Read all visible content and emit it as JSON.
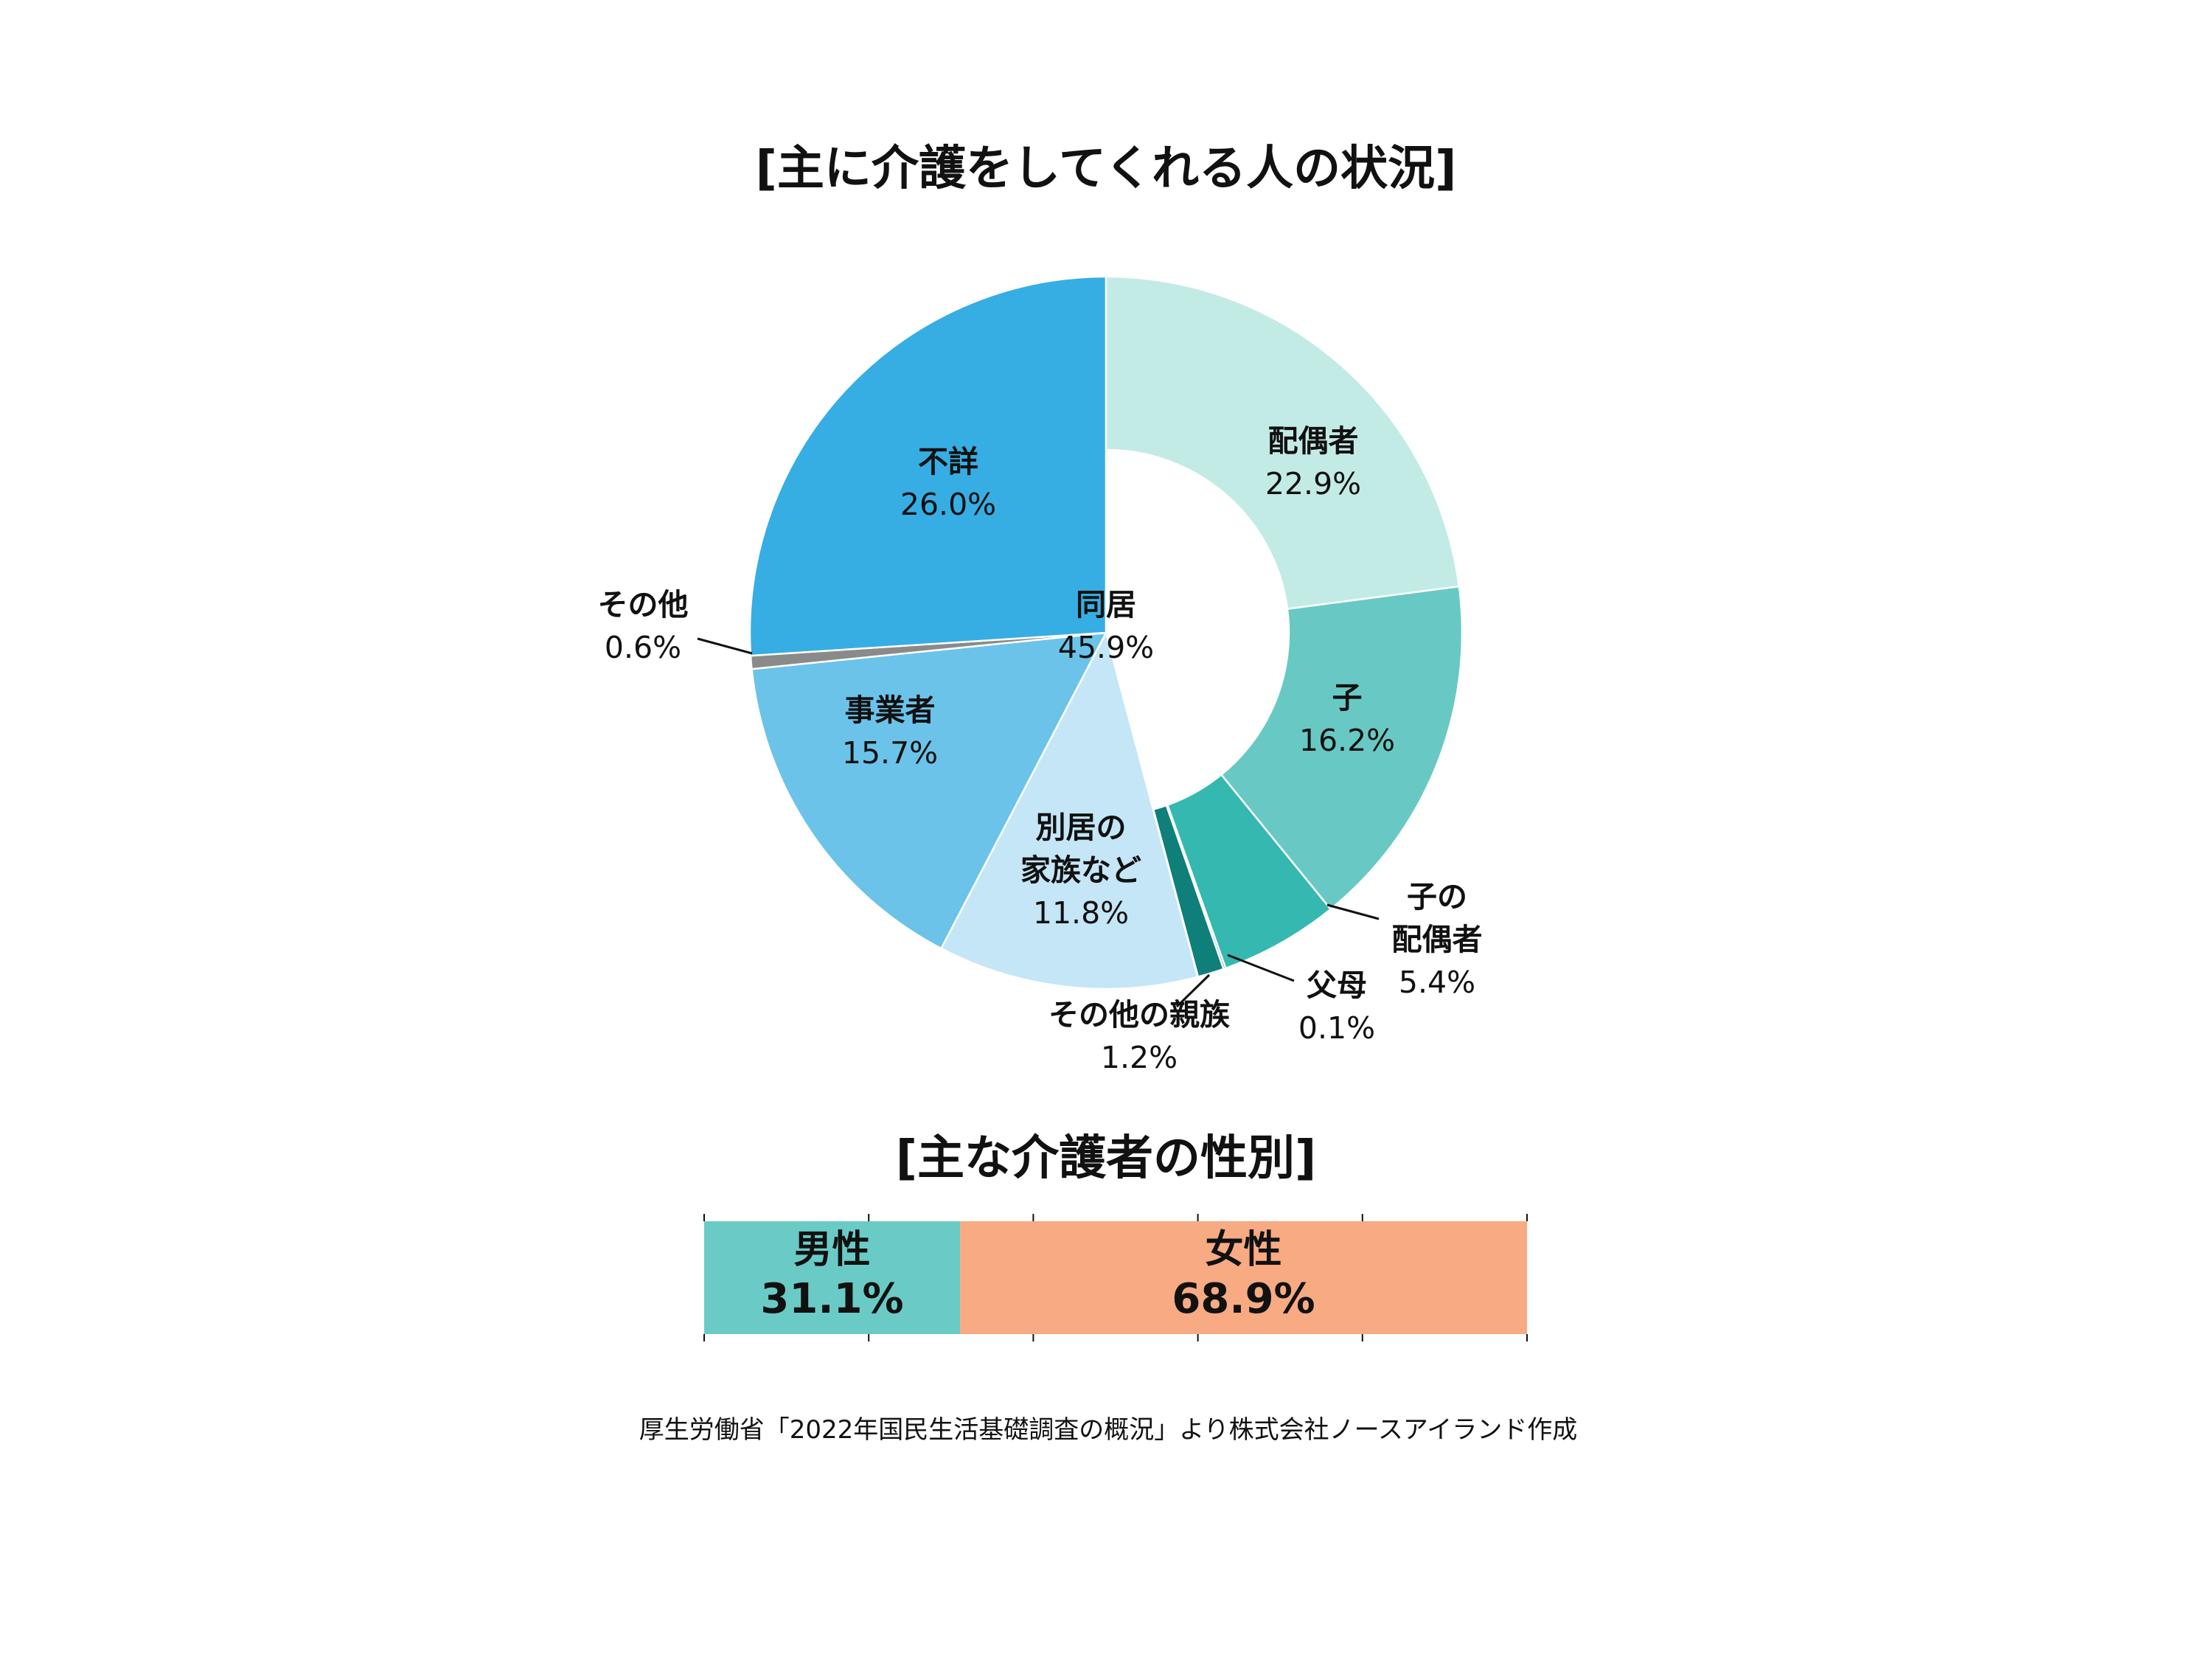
{
  "pie_title": "[主に介護をしてくれる人の状況]",
  "bar_title": "[主な介護者の性別]",
  "source": "厚生労働省「2022年国民生活基礎調査の概況」より株式会社ノースアイランド作成",
  "inner": {
    "label": "同居",
    "value": "45.9%"
  },
  "slice_labels": [
    {
      "lines": [
        "配偶者"
      ],
      "value": "22.9%"
    },
    {
      "lines": [
        "子"
      ],
      "value": "16.2%"
    },
    {
      "lines": [
        "子の",
        "配偶者"
      ],
      "value": "5.4%"
    },
    {
      "lines": [
        "父母"
      ],
      "value": "0.1%"
    },
    {
      "lines": [
        "その他の親族"
      ],
      "value": "1.2%"
    },
    {
      "lines": [
        "別居の",
        "家族など"
      ],
      "value": "11.8%"
    },
    {
      "lines": [
        "事業者"
      ],
      "value": "15.7%"
    },
    {
      "lines": [
        "その他"
      ],
      "value": "0.6%"
    },
    {
      "lines": [
        "不詳"
      ],
      "value": "26.0%"
    }
  ],
  "gender_labels": [
    {
      "name": "男性",
      "value": "31.1%"
    },
    {
      "name": "女性",
      "value": "68.9%"
    }
  ],
  "chart_data": [
    {
      "type": "pie",
      "title": "[主に介護をしてくれる人の状況]",
      "categories": [
        "配偶者",
        "子",
        "子の配偶者",
        "父母",
        "その他の親族",
        "別居の家族など",
        "事業者",
        "その他",
        "不詳"
      ],
      "values": [
        22.9,
        16.2,
        5.4,
        0.1,
        1.2,
        11.8,
        15.7,
        0.6,
        26.0
      ],
      "colors": [
        "#c3ebe6",
        "#68c9c4",
        "#34b8b0",
        "#0b6b66",
        "#0e7f79",
        "#c4e6f7",
        "#6bc3ea",
        "#8a8a8a",
        "#36aee3"
      ],
      "inner_group": {
        "label": "同居",
        "value": 45.9,
        "members": [
          "配偶者",
          "子",
          "子の配偶者",
          "父母",
          "その他の親族"
        ]
      }
    },
    {
      "type": "bar",
      "orientation": "horizontal-stacked",
      "title": "[主な介護者の性別]",
      "categories": [
        "男性",
        "女性"
      ],
      "values": [
        31.1,
        68.9
      ],
      "colors": [
        "#6acbc6",
        "#f8aa83"
      ],
      "xlim": [
        0,
        100
      ]
    }
  ]
}
